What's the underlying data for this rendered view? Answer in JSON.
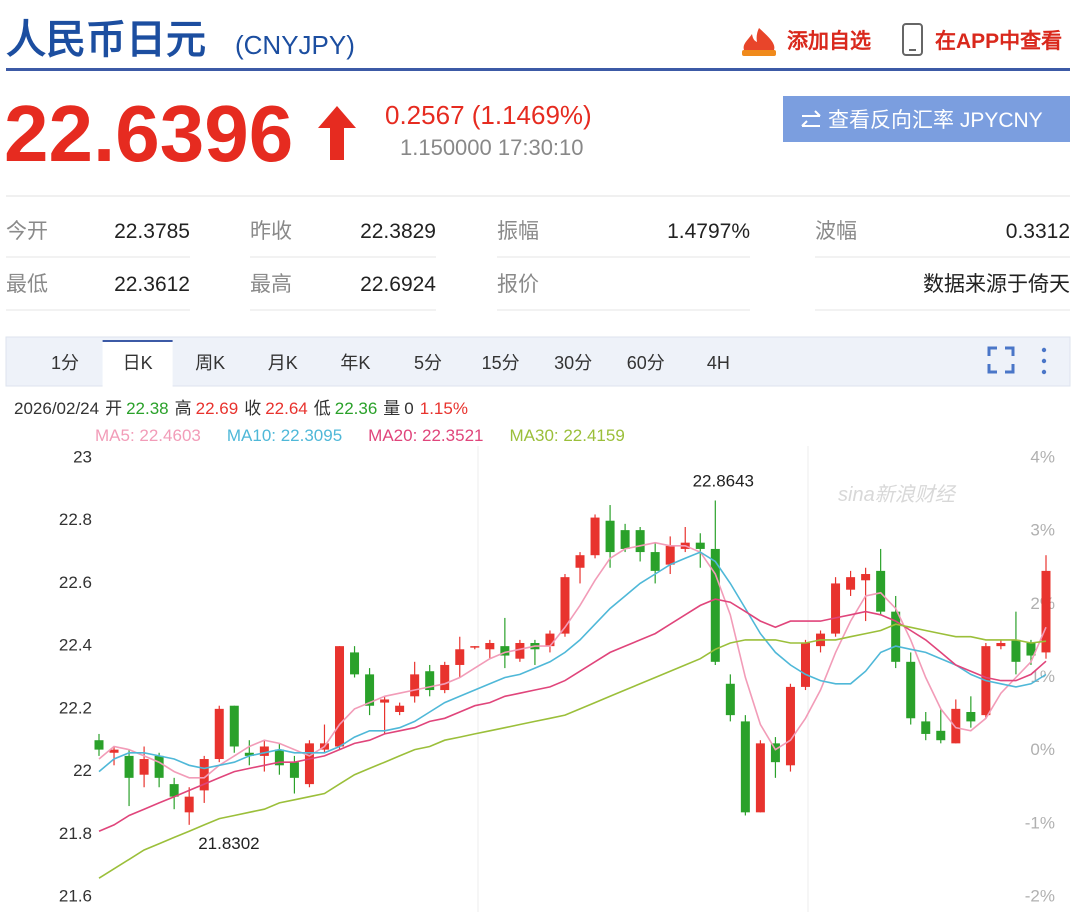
{
  "header": {
    "title": "人民币日元",
    "code": "(CNYJPY)",
    "actions": [
      "添加自选",
      "在APP中查看"
    ]
  },
  "quote": {
    "price": "22.6396",
    "change": "0.2567 (1.1469%)",
    "sub": "1.150000 17:30:10",
    "reverse": "查看反向汇率 JPYCNY"
  },
  "stats": [
    [
      {
        "label": "今开",
        "value": "22.3785"
      },
      {
        "label": "昨收",
        "value": "22.3829"
      },
      {
        "label": "振幅",
        "value": "1.4797%"
      },
      {
        "label": "波幅",
        "value": "0.3312"
      }
    ],
    [
      {
        "label": "最低",
        "value": "22.3612"
      },
      {
        "label": "最高",
        "value": "22.6924"
      },
      {
        "label": "报价"
      },
      {
        "value": "数据来源于倚天"
      }
    ]
  ],
  "tabs": {
    "items": [
      "1分",
      "日K",
      "周K",
      "月K",
      "年K",
      "5分",
      "15分",
      "30分",
      "60分",
      "4H"
    ],
    "active": 1
  },
  "info": {
    "date": "2026/02/24",
    "items": [
      {
        "label": "开",
        "value": "22.38",
        "color": "#2aa12a"
      },
      {
        "label": "高",
        "value": "22.69",
        "color": "#e8332e"
      },
      {
        "label": "收",
        "value": "22.64",
        "color": "#e8332e"
      },
      {
        "label": "低",
        "value": "22.36",
        "color": "#2aa12a"
      },
      {
        "label": "量",
        "value": "0",
        "color": "#333333"
      },
      {
        "value": "1.15%",
        "color": "#e8332e"
      }
    ]
  },
  "chart_data": {
    "type": "candlestick",
    "up_color": "#e8332e",
    "down_color": "#2aa12a",
    "ylim": [
      21.6,
      23
    ],
    "yticks": [
      21.6,
      21.8,
      22,
      22.2,
      22.4,
      22.6,
      22.8,
      23
    ],
    "y2lim": [
      -2,
      4
    ],
    "y2ticks": [
      {
        "value": -2,
        "label": "-2%"
      },
      {
        "value": -1,
        "label": "-1%"
      },
      {
        "value": 0,
        "label": "0%"
      },
      {
        "value": 1,
        "label": "1%"
      },
      {
        "value": 2,
        "label": "2%"
      },
      {
        "value": 3,
        "label": "3%"
      },
      {
        "value": 4,
        "label": "4%"
      }
    ],
    "grid": false,
    "watermark": "sina新浪财经",
    "annotations": [
      {
        "text": "22.8643"
      },
      {
        "text": "21.8302"
      }
    ],
    "open": [
      22.1,
      22.06,
      22.05,
      21.99,
      22.05,
      21.96,
      21.87,
      21.94,
      22.04,
      22.21,
      22.06,
      22.05,
      22.07,
      22.03,
      21.96,
      22.07,
      22.08,
      22.38,
      22.31,
      22.22,
      22.19,
      22.24,
      22.32,
      22.26,
      22.34,
      22.4,
      22.39,
      22.4,
      22.36,
      22.41,
      22.4,
      22.44,
      22.65,
      22.69,
      22.8,
      22.77,
      22.77,
      22.7,
      22.66,
      22.71,
      22.73,
      22.71,
      22.28,
      22.16,
      21.87,
      22.09,
      22.02,
      22.27,
      22.4,
      22.44,
      22.58,
      22.61,
      22.64,
      22.51,
      22.35,
      22.16,
      22.13,
      22.09,
      22.19,
      22.18,
      22.4,
      22.42,
      22.41,
      22.38
    ],
    "high": [
      22.12,
      22.08,
      22.07,
      22.08,
      22.06,
      21.98,
      21.95,
      22.05,
      22.21,
      22.21,
      22.1,
      22.1,
      22.09,
      22.05,
      22.1,
      22.15,
      22.4,
      22.4,
      22.33,
      22.24,
      22.22,
      22.35,
      22.34,
      22.35,
      22.43,
      22.4,
      22.42,
      22.49,
      22.42,
      22.42,
      22.45,
      22.63,
      22.7,
      22.82,
      22.85,
      22.79,
      22.78,
      22.73,
      22.75,
      22.78,
      22.76,
      22.8643,
      22.31,
      22.18,
      22.1,
      22.11,
      22.28,
      22.42,
      22.45,
      22.62,
      22.64,
      22.65,
      22.71,
      22.56,
      22.38,
      22.19,
      22.2,
      22.23,
      22.24,
      22.41,
      22.42,
      22.51,
      22.42,
      22.69
    ],
    "low": [
      22.05,
      22.02,
      21.89,
      21.95,
      21.95,
      21.88,
      21.8302,
      21.9,
      22.03,
      22.06,
      22.02,
      22.0,
      21.99,
      21.93,
      21.95,
      22.06,
      22.07,
      22.3,
      22.18,
      22.12,
      22.18,
      22.22,
      22.24,
      22.25,
      22.3,
      22.39,
      22.36,
      22.33,
      22.35,
      22.34,
      22.38,
      22.43,
      22.6,
      22.68,
      22.65,
      22.7,
      22.67,
      22.6,
      22.63,
      22.7,
      22.65,
      22.34,
      22.16,
      21.86,
      21.87,
      21.98,
      22.0,
      22.26,
      22.38,
      22.43,
      22.56,
      22.48,
      22.5,
      22.33,
      22.15,
      22.1,
      22.09,
      22.09,
      22.14,
      22.17,
      22.39,
      22.31,
      22.34,
      22.36
    ],
    "close": [
      22.07,
      22.07,
      21.98,
      22.04,
      21.98,
      21.92,
      21.92,
      22.04,
      22.2,
      22.08,
      22.05,
      22.08,
      22.02,
      21.98,
      22.09,
      22.09,
      22.4,
      22.31,
      22.21,
      22.23,
      22.21,
      22.31,
      22.26,
      22.34,
      22.39,
      22.4,
      22.41,
      22.37,
      22.41,
      22.39,
      22.44,
      22.62,
      22.69,
      22.81,
      22.7,
      22.71,
      22.7,
      22.64,
      22.72,
      22.73,
      22.71,
      22.35,
      22.18,
      21.87,
      22.09,
      22.03,
      22.27,
      22.41,
      22.44,
      22.6,
      22.62,
      22.63,
      22.51,
      22.35,
      22.17,
      22.12,
      22.1,
      22.2,
      22.16,
      22.4,
      22.41,
      22.35,
      22.37,
      22.64
    ],
    "series": [
      {
        "name": "MA5",
        "label": "MA5: 22.4603",
        "color": "#f29cb8",
        "values": [
          22.04,
          22.08,
          22.07,
          22.05,
          22.03,
          22.0,
          21.98,
          21.98,
          22.02,
          22.05,
          22.08,
          22.1,
          22.09,
          22.07,
          22.05,
          22.08,
          22.15,
          22.2,
          22.22,
          22.24,
          22.25,
          22.26,
          22.27,
          22.28,
          22.3,
          22.33,
          22.36,
          22.38,
          22.39,
          22.4,
          22.4,
          22.46,
          22.53,
          22.61,
          22.68,
          22.71,
          22.72,
          22.73,
          22.72,
          22.72,
          22.7,
          22.63,
          22.5,
          22.3,
          22.15,
          22.07,
          22.1,
          22.17,
          22.26,
          22.38,
          22.48,
          22.56,
          22.57,
          22.52,
          22.42,
          22.3,
          22.2,
          22.14,
          22.13,
          22.17,
          22.25,
          22.3,
          22.35,
          22.4603
        ]
      },
      {
        "name": "MA10",
        "label": "MA10: 22.3095",
        "color": "#4fb8d8",
        "values": [
          22.0,
          22.04,
          22.06,
          22.06,
          22.05,
          22.04,
          22.02,
          22.01,
          22.02,
          22.03,
          22.05,
          22.06,
          22.07,
          22.06,
          22.06,
          22.06,
          22.08,
          22.11,
          22.13,
          22.13,
          22.14,
          22.16,
          22.19,
          22.22,
          22.24,
          22.26,
          22.28,
          22.3,
          22.31,
          22.33,
          22.35,
          22.38,
          22.42,
          22.47,
          22.52,
          22.56,
          22.6,
          22.63,
          22.66,
          22.68,
          22.7,
          22.67,
          22.6,
          22.52,
          22.44,
          22.38,
          22.34,
          22.31,
          22.29,
          22.28,
          22.28,
          22.32,
          22.38,
          22.4,
          22.39,
          22.38,
          22.36,
          22.34,
          22.31,
          22.29,
          22.28,
          22.27,
          22.28,
          22.3095
        ]
      },
      {
        "name": "MA20",
        "label": "MA20: 22.3521",
        "color": "#e0457b",
        "values": [
          21.81,
          21.83,
          21.86,
          21.88,
          21.9,
          21.92,
          21.94,
          21.96,
          21.98,
          22.0,
          22.01,
          22.02,
          22.03,
          22.03,
          22.04,
          22.05,
          22.07,
          22.09,
          22.1,
          22.12,
          22.13,
          22.14,
          22.16,
          22.17,
          22.19,
          22.21,
          22.22,
          22.24,
          22.25,
          22.26,
          22.27,
          22.29,
          22.32,
          22.35,
          22.38,
          22.4,
          22.42,
          22.44,
          22.47,
          22.5,
          22.53,
          22.55,
          22.54,
          22.51,
          22.48,
          22.46,
          22.48,
          22.48,
          22.48,
          22.49,
          22.5,
          22.51,
          22.5,
          22.48,
          22.45,
          22.42,
          22.38,
          22.34,
          22.32,
          22.3,
          22.29,
          22.29,
          22.31,
          22.3521
        ]
      },
      {
        "name": "MA30",
        "label": "MA30: 22.4159",
        "color": "#9bbf3a",
        "values": [
          21.66,
          21.69,
          21.72,
          21.75,
          21.77,
          21.79,
          21.81,
          21.83,
          21.85,
          21.86,
          21.87,
          21.88,
          21.9,
          21.91,
          21.92,
          21.93,
          21.96,
          21.99,
          22.01,
          22.03,
          22.05,
          22.07,
          22.08,
          22.1,
          22.11,
          22.12,
          22.13,
          22.14,
          22.15,
          22.16,
          22.17,
          22.18,
          22.2,
          22.22,
          22.24,
          22.26,
          22.28,
          22.3,
          22.32,
          22.34,
          22.36,
          22.39,
          22.41,
          22.42,
          22.42,
          22.42,
          22.41,
          22.41,
          22.42,
          22.42,
          22.43,
          22.44,
          22.45,
          22.47,
          22.46,
          22.45,
          22.44,
          22.43,
          22.43,
          22.42,
          22.42,
          22.42,
          22.41,
          22.4159
        ]
      }
    ]
  }
}
